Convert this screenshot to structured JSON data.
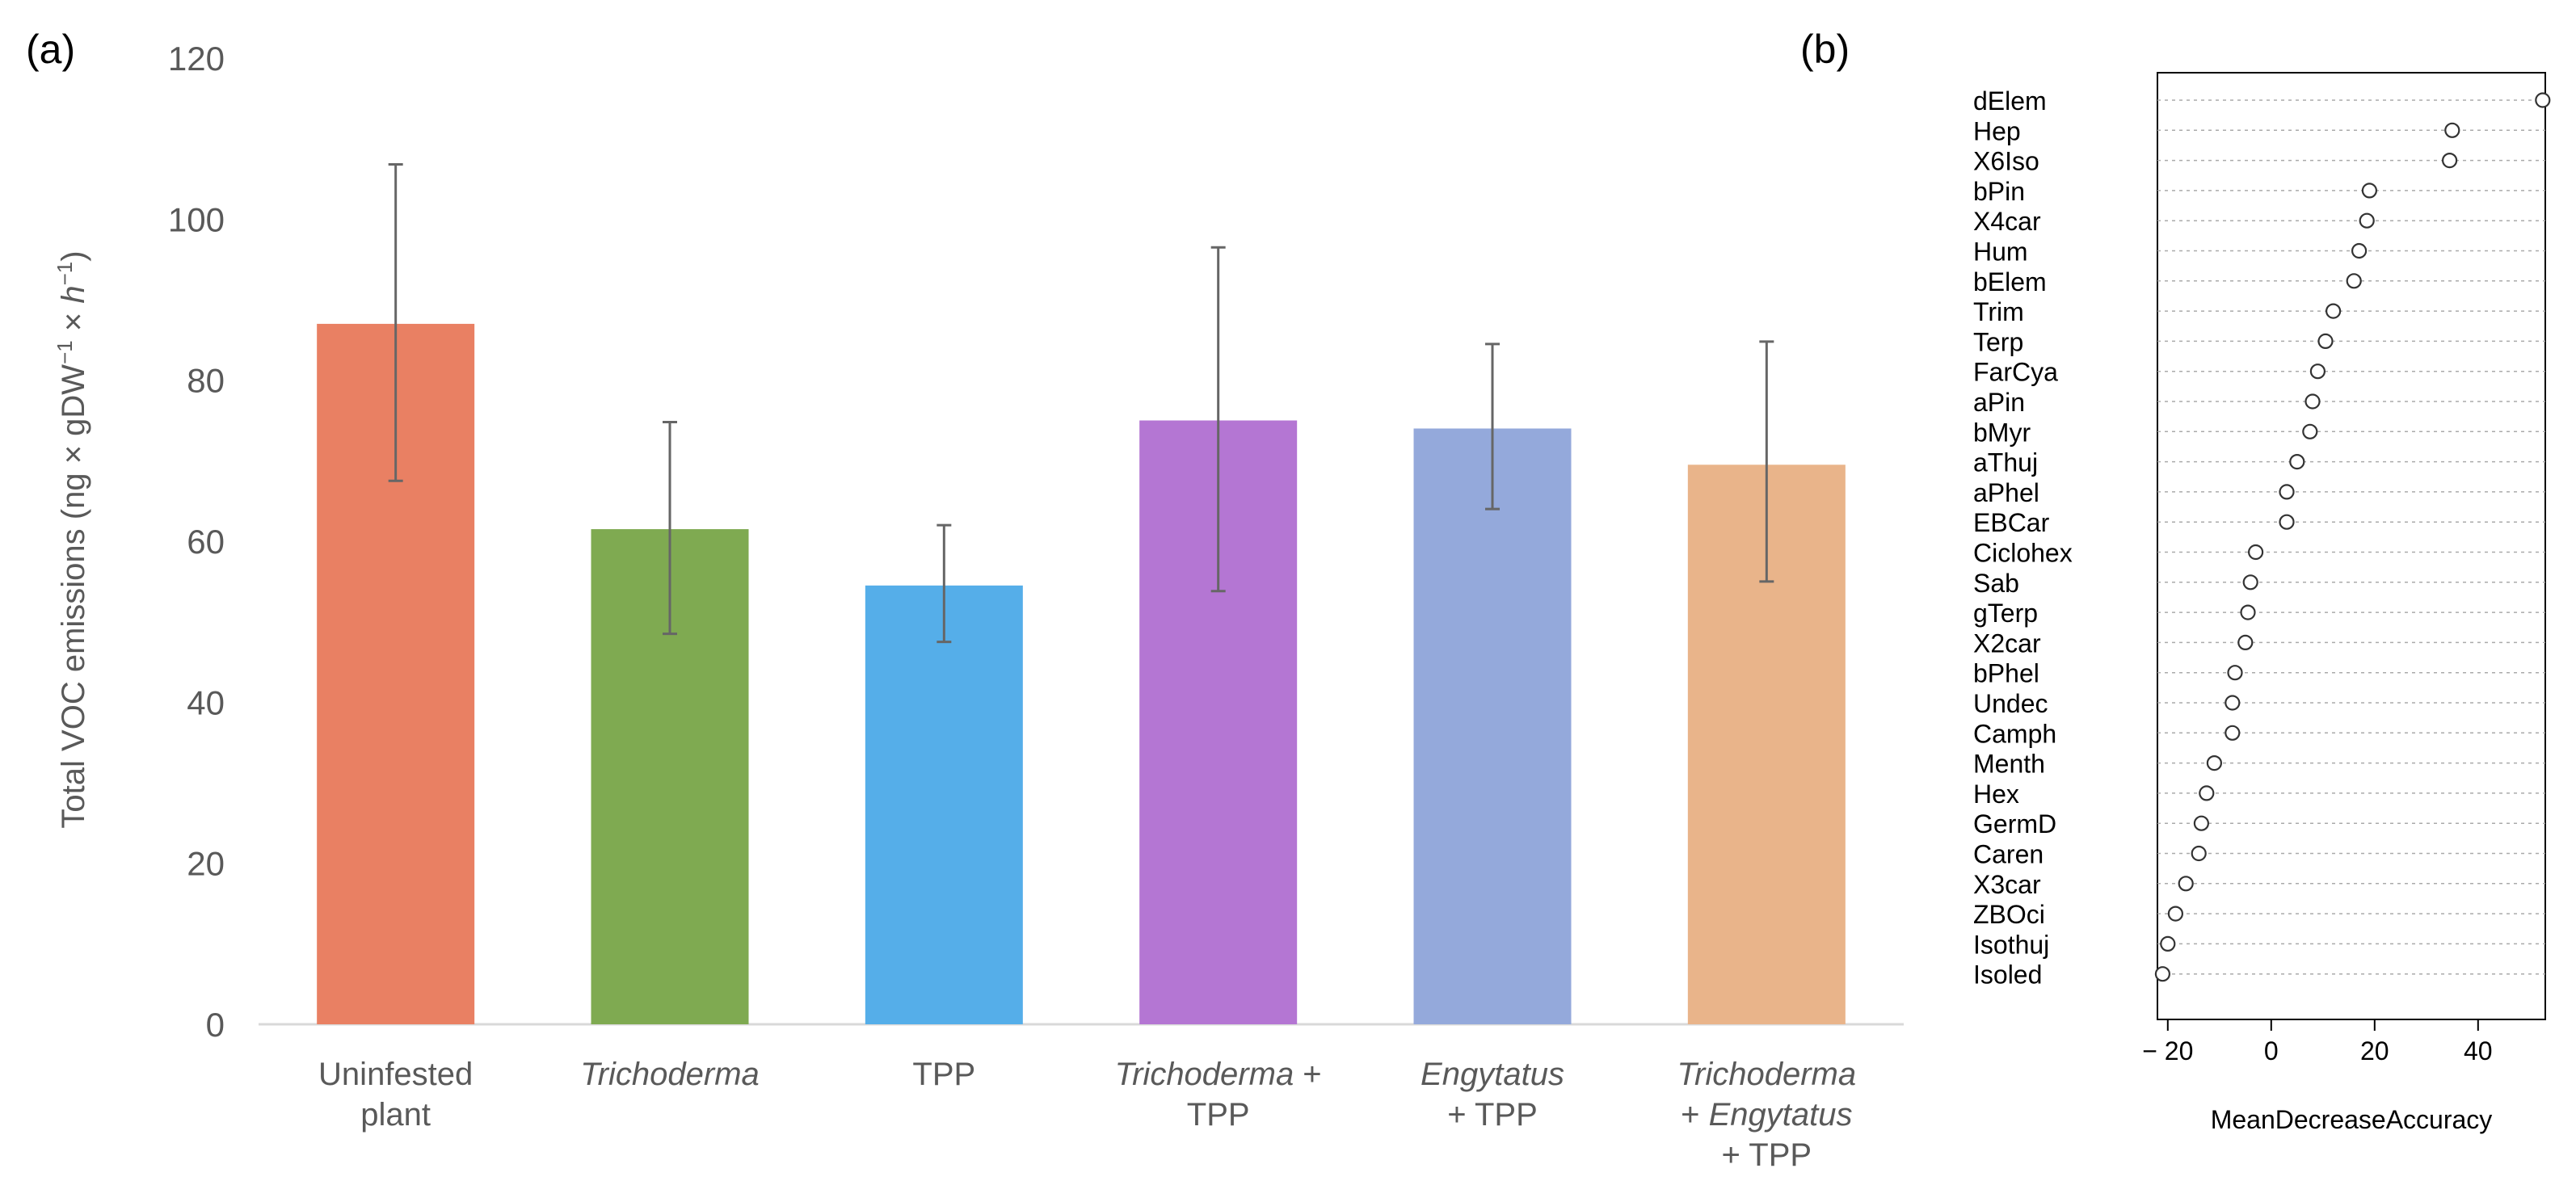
{
  "chart_data": [
    {
      "panel_label": "(a)",
      "type": "bar",
      "title": "",
      "ylabel": "Total VOC emissions (ng × gDW",
      "ylabel_sup1": "−1",
      "ylabel_mid": " × ",
      "ylabel_h": "h",
      "ylabel_sup2": "−1",
      "ylabel_end": ")",
      "ylim": [
        0,
        120
      ],
      "yticks": [
        "0",
        "20",
        "40",
        "60",
        "80",
        "100",
        "120"
      ],
      "categories": [
        {
          "lines": [
            {
              "parts": [
                {
                  "t": "Uninfested",
                  "i": false
                }
              ]
            },
            {
              "parts": [
                {
                  "t": "plant",
                  "i": false
                }
              ]
            }
          ]
        },
        {
          "lines": [
            {
              "parts": [
                {
                  "t": "Trichoderma",
                  "i": true
                }
              ]
            }
          ]
        },
        {
          "lines": [
            {
              "parts": [
                {
                  "t": "TPP",
                  "i": false
                }
              ]
            }
          ]
        },
        {
          "lines": [
            {
              "parts": [
                {
                  "t": "Trichoderma",
                  "i": true
                },
                {
                  "t": " +",
                  "i": false
                }
              ]
            },
            {
              "parts": [
                {
                  "t": "TPP",
                  "i": false
                }
              ]
            }
          ]
        },
        {
          "lines": [
            {
              "parts": [
                {
                  "t": "Engytatus",
                  "i": true
                }
              ]
            },
            {
              "parts": [
                {
                  "t": "+ TPP",
                  "i": false
                }
              ]
            }
          ]
        },
        {
          "lines": [
            {
              "parts": [
                {
                  "t": "Trichoderma",
                  "i": true
                }
              ]
            },
            {
              "parts": [
                {
                  "t": "+ ",
                  "i": false
                },
                {
                  "t": "Engytatus",
                  "i": true
                }
              ]
            },
            {
              "parts": [
                {
                  "t": "+ TPP",
                  "i": false
                }
              ]
            }
          ]
        }
      ],
      "values": [
        87,
        61.5,
        54.5,
        75,
        74,
        69.5
      ],
      "err_low": [
        67.5,
        48.5,
        47.5,
        53.8,
        64,
        55
      ],
      "err_high": [
        106.8,
        74.8,
        62,
        96.5,
        84.5,
        84.8
      ],
      "colors": [
        "#e98063",
        "#7faa51",
        "#55aee9",
        "#b476d3",
        "#94a9db",
        "#e9b48a"
      ]
    },
    {
      "panel_label": "(b)",
      "type": "scatter",
      "xlabel": "MeanDecreaseAccuracy",
      "xlim": [
        -22,
        53
      ],
      "xticks": [
        -20,
        0,
        20,
        40
      ],
      "xtick_labels": [
        "− 20",
        "0",
        "20",
        "40"
      ],
      "labels": [
        "dElem",
        "Hep",
        "X6Iso",
        "bPin",
        "X4car",
        "Hum",
        "bElem",
        "Trim",
        "Terp",
        "FarCya",
        "aPin",
        "bMyr",
        "aThuj",
        "aPhel",
        "EBCar",
        "Ciclohex",
        "Sab",
        "gTerp",
        "X2car",
        "bPhel",
        "Undec",
        "Camph",
        "Menth",
        "Hex",
        "GermD",
        "Caren",
        "X3car",
        "ZBOci",
        "Isothuj",
        "Isoled"
      ],
      "values": [
        52.5,
        35,
        34.5,
        19,
        18.5,
        17,
        16,
        12,
        10.5,
        9,
        8,
        7.5,
        5,
        3,
        3,
        -3,
        -4,
        -4.5,
        -5,
        -7,
        -7.5,
        -7.5,
        -11,
        -12.5,
        -13.5,
        -14,
        -16.5,
        -18.5,
        -20,
        -21
      ]
    }
  ],
  "colors": {
    "axis": "#d9d9d9",
    "tick_text": "#595959",
    "errorbar": "#666666",
    "point": "#333333"
  }
}
